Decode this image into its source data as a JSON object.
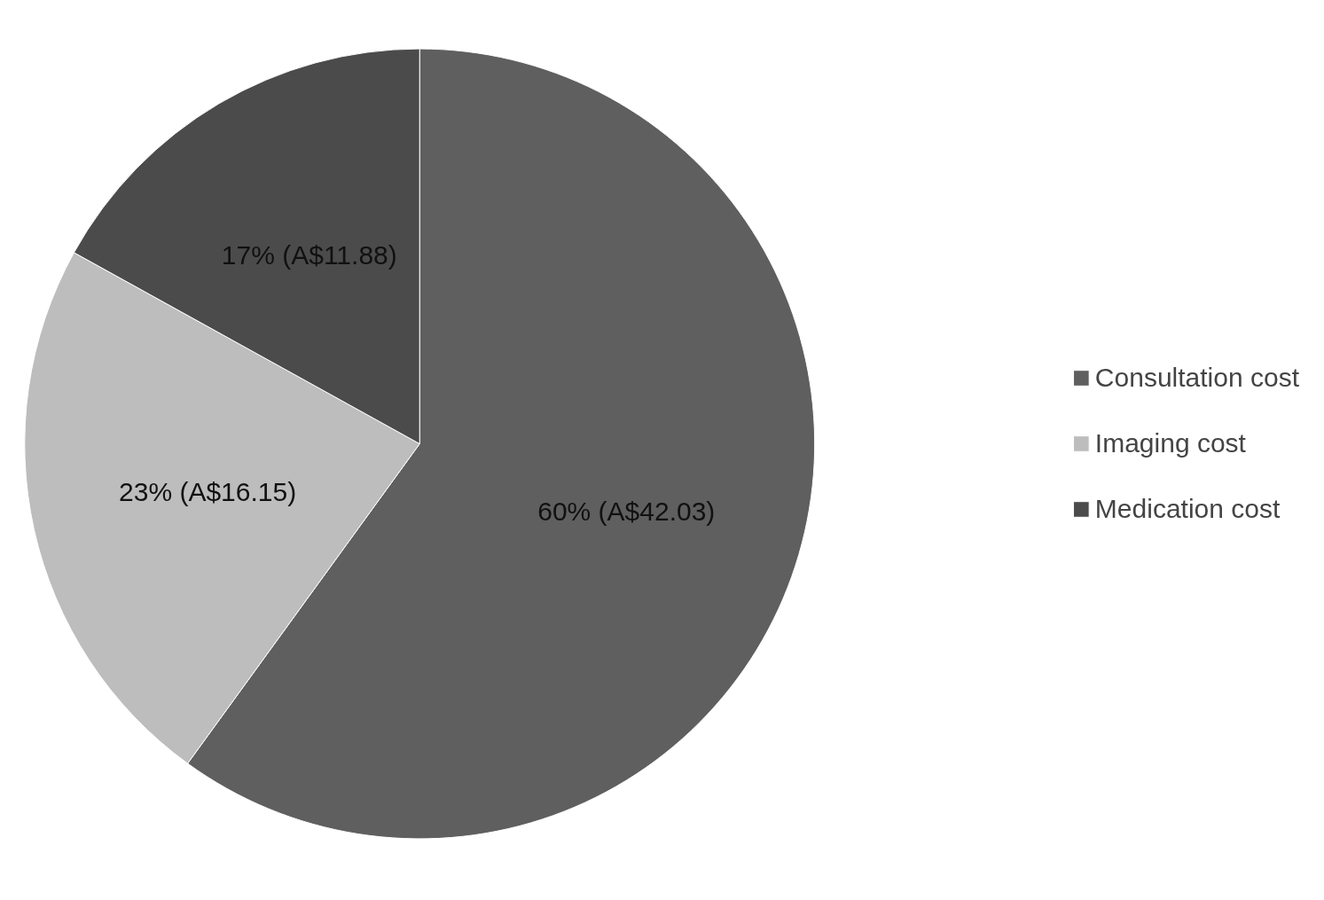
{
  "chart_data": {
    "type": "pie",
    "categories": [
      "Consultation cost",
      "Imaging cost",
      "Medication cost"
    ],
    "values": [
      42.03,
      16.15,
      11.88
    ],
    "colors": [
      "#5f5f5f",
      "#bdbdbd",
      "#4b4b4b"
    ],
    "value_labels": [
      "60% (A$42.03)",
      "23% (A$16.15)",
      "17% (A$11.88)"
    ],
    "legend": "right"
  }
}
